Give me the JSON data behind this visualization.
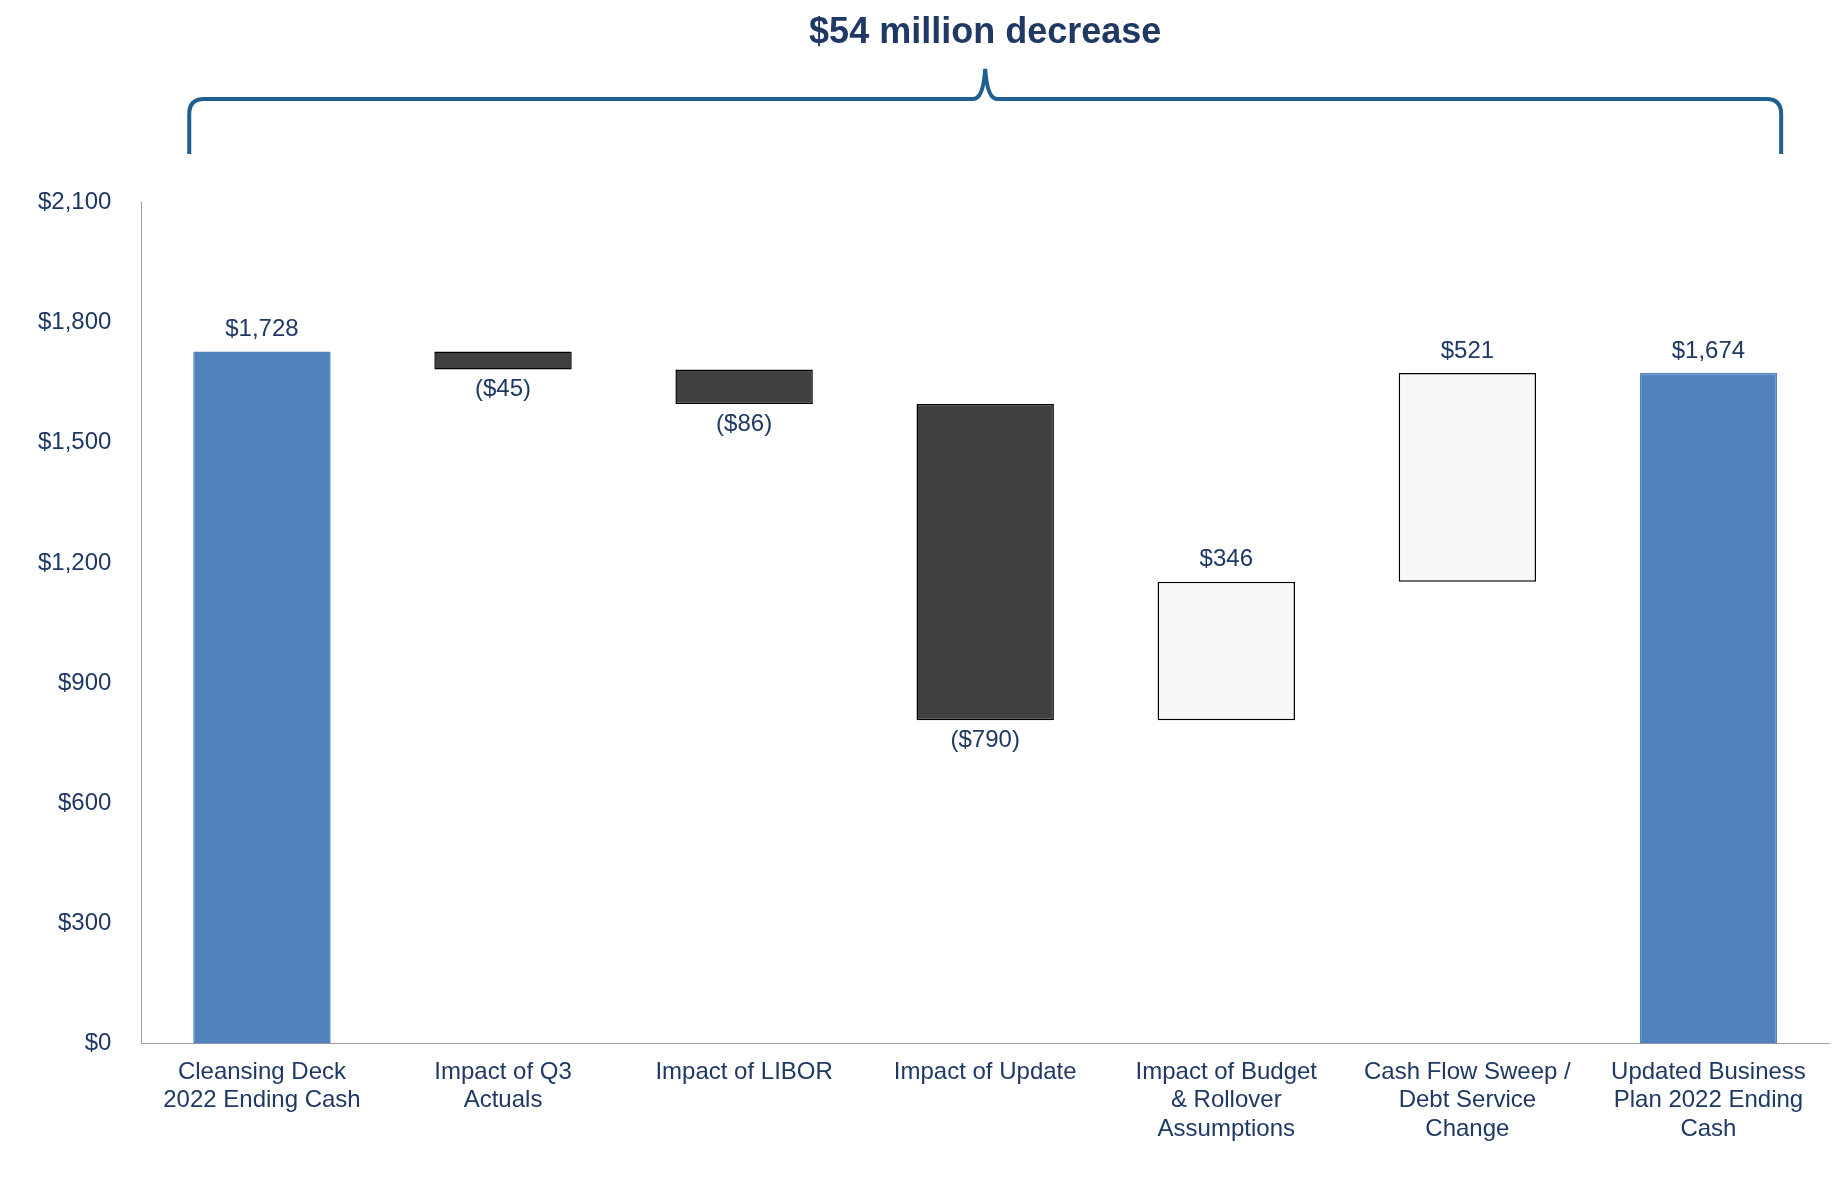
{
  "chart_data": {
    "type": "bar",
    "title": "$54 million decrease",
    "categories": [
      "Cleansing Deck 2022 Ending Cash",
      "Impact of Q3 Actuals",
      "Impact of LIBOR",
      "Impact of Update",
      "Impact of Budget & Rollover Assumptions",
      "Cash Flow Sweep / Debt Service Change",
      "Updated Business Plan 2022 Ending Cash"
    ],
    "values": [
      1728,
      -45,
      -86,
      -790,
      346,
      521,
      1674
    ],
    "base": [
      0,
      1728,
      1683,
      1597,
      807,
      1153,
      0
    ],
    "colors": [
      "#4f81bd",
      "#404040",
      "#404040",
      "#404040",
      "#f7f7f7",
      "#f7f7f7",
      "#4f81bd"
    ],
    "value_labels": [
      "$1,728",
      "($45)",
      "($86)",
      "($790)",
      "$346",
      "$521",
      "$1,674"
    ],
    "ylim": [
      0,
      2100
    ],
    "yticks": [
      {
        "value": 0,
        "label": "$0"
      },
      {
        "value": 300,
        "label": "$300"
      },
      {
        "value": 600,
        "label": "$600"
      },
      {
        "value": 900,
        "label": "$900"
      },
      {
        "value": 1200,
        "label": "$1,200"
      },
      {
        "value": 1500,
        "label": "$1,500"
      },
      {
        "value": 1800,
        "label": "$1,800"
      },
      {
        "value": 2100,
        "label": "$2,100"
      }
    ],
    "grid": false,
    "legend": false
  }
}
